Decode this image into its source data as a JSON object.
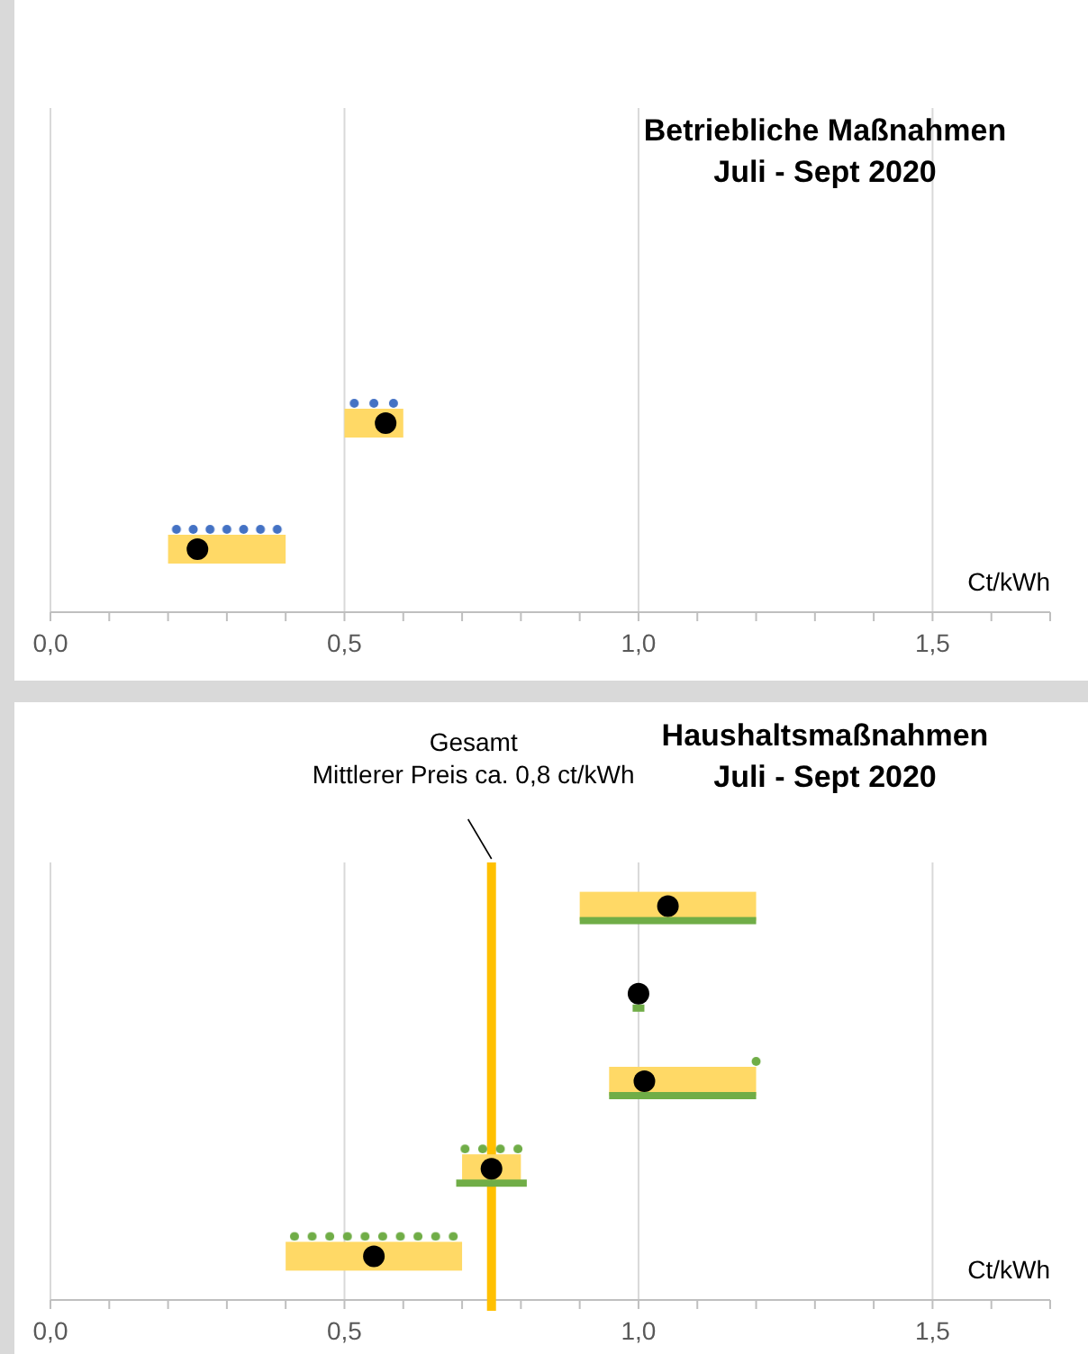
{
  "chart_data": [
    {
      "type": "bar",
      "orientation": "horizontal",
      "title": "Betriebliche Maßnahmen",
      "subtitle": "Juli - Sept 2020",
      "xlabel": "Ct/kWh",
      "categories": [
        null,
        null,
        null,
        null
      ],
      "xlim": [
        0,
        1.7
      ],
      "xticks": [
        {
          "value": 0,
          "label": "0,0"
        },
        {
          "value": 0.1,
          "label": null
        },
        {
          "value": 0.2,
          "label": null
        },
        {
          "value": 0.3,
          "label": null
        },
        {
          "value": 0.4,
          "label": null
        },
        {
          "value": 0.5,
          "label": "0,5"
        },
        {
          "value": 0.6,
          "label": null
        },
        {
          "value": 0.7,
          "label": null
        },
        {
          "value": 0.8,
          "label": null
        },
        {
          "value": 0.9,
          "label": null
        },
        {
          "value": 1.0,
          "label": "1,0"
        },
        {
          "value": 1.1,
          "label": null
        },
        {
          "value": 1.2,
          "label": null
        },
        {
          "value": 1.3,
          "label": null
        },
        {
          "value": 1.4,
          "label": null
        },
        {
          "value": 1.5,
          "label": "1,5"
        },
        {
          "value": 1.6,
          "label": null
        },
        {
          "value": 1.7,
          "label": null
        }
      ],
      "grid": "x",
      "series": [
        {
          "color": "#ffd966",
          "base": [
            null,
            null,
            0.5,
            0.2
          ],
          "values": [
            null,
            null,
            0.1,
            0.2
          ]
        },
        {
          "line_style": "dotted",
          "color": "#4472c4",
          "base": [
            null,
            null,
            0.5,
            0.2
          ],
          "values": [
            null,
            null,
            0.1,
            0.2
          ]
        },
        {
          "type": "scatter",
          "marker": "circle",
          "color": "#000000",
          "values": [
            null,
            null,
            0.57,
            0.25
          ]
        }
      ]
    },
    {
      "type": "bar",
      "orientation": "horizontal",
      "title": "Haushaltsmaßnahmen",
      "subtitle": "Juli - Sept 2020",
      "xlabel": "Ct/kWh",
      "categories": [
        null,
        null,
        null,
        null,
        null
      ],
      "xlim": [
        0,
        1.7
      ],
      "xticks": [
        {
          "value": 0,
          "label": "0,0"
        },
        {
          "value": 0.1,
          "label": null
        },
        {
          "value": 0.2,
          "label": null
        },
        {
          "value": 0.3,
          "label": null
        },
        {
          "value": 0.4,
          "label": null
        },
        {
          "value": 0.5,
          "label": "0,5"
        },
        {
          "value": 0.6,
          "label": null
        },
        {
          "value": 0.7,
          "label": null
        },
        {
          "value": 0.8,
          "label": null
        },
        {
          "value": 0.9,
          "label": null
        },
        {
          "value": 1.0,
          "label": "1,0"
        },
        {
          "value": 1.1,
          "label": null
        },
        {
          "value": 1.2,
          "label": null
        },
        {
          "value": 1.3,
          "label": null
        },
        {
          "value": 1.4,
          "label": null
        },
        {
          "value": 1.5,
          "label": "1,5"
        },
        {
          "value": 1.6,
          "label": null
        },
        {
          "value": 1.7,
          "label": null
        }
      ],
      "grid": "x",
      "ref_lines": [
        {
          "axis": "x",
          "value": 0.75,
          "color": "#ffc000",
          "label": "Gesamt\nMittlerer Preis ca. 0,8 ct/kWh"
        }
      ],
      "series": [
        {
          "color": "#ffd966",
          "base": [
            0.9,
            null,
            0.95,
            0.7,
            0.4
          ],
          "values": [
            0.3,
            null,
            0.25,
            0.1,
            0.3
          ]
        },
        {
          "line_style": "dotted",
          "color": "#70ad47",
          "base": [
            null,
            null,
            1.19,
            0.69,
            0.4
          ],
          "values": [
            null,
            null,
            0.02,
            0.12,
            0.3
          ]
        },
        {
          "line_style": "solid",
          "color": "#70ad47",
          "base": [
            0.9,
            0.99,
            0.95,
            0.69,
            null
          ],
          "values": [
            0.3,
            0.02,
            0.25,
            0.12,
            null
          ]
        },
        {
          "type": "scatter",
          "marker": "circle",
          "color": "#000000",
          "values": [
            1.05,
            1.0,
            1.01,
            0.75,
            0.55
          ]
        }
      ]
    }
  ]
}
